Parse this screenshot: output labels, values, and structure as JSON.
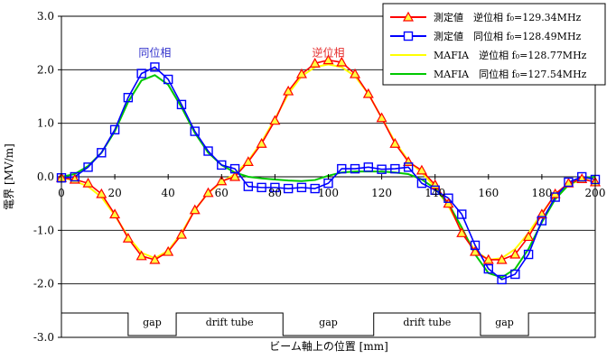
{
  "chart_data": {
    "type": "line",
    "xlabel": "ビーム軸上の位置 [mm]",
    "ylabel": "電界 [MV/m]",
    "xlim": [
      0,
      200
    ],
    "ylim": [
      -3.0,
      3.0
    ],
    "x_ticks": [
      0,
      20,
      40,
      60,
      80,
      100,
      120,
      140,
      160,
      180,
      200
    ],
    "y_ticks": [
      "3.0",
      "2.0",
      "1.0",
      "0.0",
      "-1.0",
      "-2.0",
      "-3.0"
    ],
    "y_tick_values": [
      3,
      2,
      1,
      0,
      -1,
      -2,
      -3
    ],
    "grid": "horizontal",
    "legend_position": "top-right",
    "annotations": [
      {
        "text": "同位相",
        "color": "#3333cc",
        "x": 35,
        "y": 2.25
      },
      {
        "text": "逆位相",
        "color": "#e53030",
        "x": 100,
        "y": 2.25
      }
    ],
    "series": [
      {
        "name": "測定値　逆位相 f₀=129.34MHz",
        "color": "#ff0000",
        "marker": "triangle",
        "x": [
          0,
          5,
          10,
          15,
          20,
          25,
          30,
          35,
          40,
          45,
          50,
          55,
          60,
          65,
          70,
          75,
          80,
          85,
          90,
          95,
          100,
          105,
          110,
          115,
          120,
          125,
          130,
          135,
          140,
          145,
          150,
          155,
          160,
          165,
          170,
          175,
          180,
          185,
          190,
          195,
          200
        ],
        "values": [
          -0.02,
          -0.05,
          -0.12,
          -0.32,
          -0.7,
          -1.15,
          -1.48,
          -1.55,
          -1.4,
          -1.08,
          -0.62,
          -0.3,
          -0.08,
          0.0,
          0.28,
          0.62,
          1.05,
          1.6,
          1.92,
          2.12,
          2.18,
          2.14,
          1.92,
          1.55,
          1.1,
          0.62,
          0.28,
          0.12,
          -0.15,
          -0.5,
          -1.05,
          -1.4,
          -1.55,
          -1.55,
          -1.45,
          -1.12,
          -0.7,
          -0.32,
          -0.12,
          -0.04,
          -0.1
        ]
      },
      {
        "name": "測定値　同位相 f₀=128.49MHz",
        "color": "#0000ff",
        "marker": "square",
        "x": [
          0,
          5,
          10,
          15,
          20,
          25,
          30,
          35,
          40,
          45,
          50,
          55,
          60,
          65,
          70,
          75,
          80,
          85,
          90,
          95,
          100,
          105,
          110,
          115,
          120,
          125,
          130,
          135,
          140,
          145,
          150,
          155,
          160,
          165,
          170,
          175,
          180,
          185,
          190,
          195,
          200
        ],
        "values": [
          -0.02,
          0.0,
          0.18,
          0.45,
          0.88,
          1.48,
          1.93,
          2.05,
          1.82,
          1.35,
          0.85,
          0.48,
          0.22,
          0.15,
          -0.18,
          -0.2,
          -0.2,
          -0.22,
          -0.2,
          -0.22,
          -0.12,
          0.15,
          0.15,
          0.18,
          0.14,
          0.15,
          0.18,
          -0.12,
          -0.25,
          -0.4,
          -0.7,
          -1.28,
          -1.72,
          -1.92,
          -1.82,
          -1.45,
          -0.82,
          -0.38,
          -0.1,
          0.0,
          -0.05
        ]
      },
      {
        "name": "MAFIA　逆位相 f₀=128.77MHz",
        "color": "#ffff00",
        "marker": "none",
        "x": [
          0,
          5,
          10,
          15,
          20,
          25,
          30,
          35,
          40,
          45,
          50,
          55,
          60,
          65,
          70,
          75,
          80,
          85,
          90,
          95,
          100,
          105,
          110,
          115,
          120,
          125,
          130,
          135,
          140,
          145,
          150,
          155,
          160,
          165,
          170,
          175,
          180,
          185,
          190,
          195,
          200
        ],
        "values": [
          0.0,
          -0.08,
          -0.18,
          -0.38,
          -0.72,
          -1.12,
          -1.42,
          -1.52,
          -1.38,
          -1.05,
          -0.62,
          -0.3,
          -0.1,
          0.05,
          0.3,
          0.65,
          1.08,
          1.55,
          1.88,
          2.05,
          2.1,
          2.05,
          1.88,
          1.55,
          1.1,
          0.65,
          0.3,
          0.08,
          -0.2,
          -0.55,
          -1.0,
          -1.38,
          -1.55,
          -1.52,
          -1.35,
          -1.05,
          -0.68,
          -0.35,
          -0.15,
          -0.05,
          0.0
        ]
      },
      {
        "name": "MAFIA　同位相 f₀=127.54MHz",
        "color": "#00c800",
        "marker": "none",
        "x": [
          0,
          5,
          10,
          15,
          20,
          25,
          30,
          35,
          40,
          45,
          50,
          55,
          60,
          65,
          70,
          75,
          80,
          85,
          90,
          95,
          100,
          105,
          110,
          115,
          120,
          125,
          130,
          135,
          140,
          145,
          150,
          155,
          160,
          165,
          170,
          175,
          180,
          185,
          190,
          195,
          200
        ],
        "values": [
          0.0,
          0.05,
          0.2,
          0.45,
          0.85,
          1.4,
          1.8,
          1.9,
          1.72,
          1.3,
          0.82,
          0.45,
          0.22,
          0.08,
          0.0,
          -0.03,
          -0.05,
          -0.07,
          -0.08,
          -0.06,
          0.02,
          0.08,
          0.1,
          0.1,
          0.1,
          0.08,
          0.05,
          -0.05,
          -0.22,
          -0.5,
          -0.95,
          -1.45,
          -1.8,
          -1.88,
          -1.72,
          -1.35,
          -0.85,
          -0.42,
          -0.15,
          -0.02,
          0.0
        ]
      }
    ],
    "bottom_strip": [
      {
        "label": "gap",
        "from": 25,
        "to": 43
      },
      {
        "label": "drift tube",
        "from": 43,
        "to": 83
      },
      {
        "label": "gap",
        "from": 83,
        "to": 117
      },
      {
        "label": "drift tube",
        "from": 117,
        "to": 157
      },
      {
        "label": "gap",
        "from": 157,
        "to": 175
      }
    ]
  }
}
